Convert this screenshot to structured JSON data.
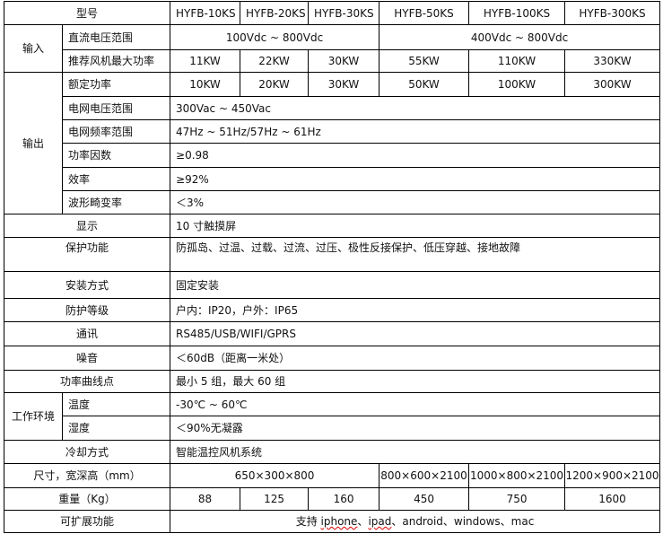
{
  "header": {
    "label": "型号",
    "models": [
      "HYFB-10KS",
      "HYFB-20KS",
      "HYFB-30KS",
      "HYFB-50KS",
      "HYFB-100KS",
      "HYFB-300KS"
    ]
  },
  "input": {
    "group": "输入",
    "dc_range": {
      "label": "直流电压范围",
      "low": "100Vdc ~ 800Vdc",
      "high": "400Vdc ~ 800Vdc"
    },
    "fan_power": {
      "label": "推荐风机最大功率",
      "values": [
        "11KW",
        "22KW",
        "30KW",
        "55KW",
        "110KW",
        "330KW"
      ]
    }
  },
  "output": {
    "group": "输出",
    "rated_power": {
      "label": "额定功率",
      "values": [
        "10KW",
        "20KW",
        "30KW",
        "50KW",
        "100KW",
        "300KW"
      ]
    },
    "grid_voltage": {
      "label": "电网电压范围",
      "value": "300Vac ~ 450Vac"
    },
    "grid_freq": {
      "label": "电网频率范围",
      "value": "47Hz ~ 51Hz/57Hz ~ 61Hz"
    },
    "power_factor": {
      "label": "功率因数",
      "value": "≥0.98"
    },
    "efficiency": {
      "label": "效率",
      "value": "≥92%"
    },
    "thd": {
      "label": "波形畸变率",
      "value": "＜3%"
    }
  },
  "display": {
    "label": "显示",
    "value": "10 寸触摸屏"
  },
  "protection": {
    "label": "保护功能",
    "value": "防孤岛、过温、过载、过流、过压、极性反接保护、低压穿越、接地故障"
  },
  "install": {
    "label": "安装方式",
    "value": "固定安装"
  },
  "ip": {
    "label": "防护等级",
    "value": "户内：IP20，户外：IP65"
  },
  "comm": {
    "label": "通讯",
    "value": "RS485/USB/WIFI/GPRS"
  },
  "noise": {
    "label": "噪音",
    "value": "＜60dB（距离一米处）"
  },
  "curve": {
    "label": "功率曲线点",
    "value": "最小 5 组，最大 60 组"
  },
  "env": {
    "group": "工作环境",
    "temp": {
      "label": "温度",
      "value": "-30℃ ~ 60℃"
    },
    "humidity": {
      "label": "湿度",
      "value": "＜90%无凝露"
    }
  },
  "cooling": {
    "label": "冷却方式",
    "value": "智能温控风机系统"
  },
  "size": {
    "label": "尺寸，宽深高（mm）",
    "values": [
      "650×300×800",
      "800×600×2100",
      "1000×800×2100",
      "1200×900×2100"
    ]
  },
  "weight": {
    "label": "重量（Kg）",
    "values": [
      "88",
      "125",
      "160",
      "450",
      "750",
      "1600"
    ]
  },
  "ext": {
    "label": "可扩展功能",
    "prefix": "支持 ",
    "iphone": "iphone",
    "sep1": "、",
    "ipad": "ipad",
    "rest": "、android、windows、mac"
  }
}
